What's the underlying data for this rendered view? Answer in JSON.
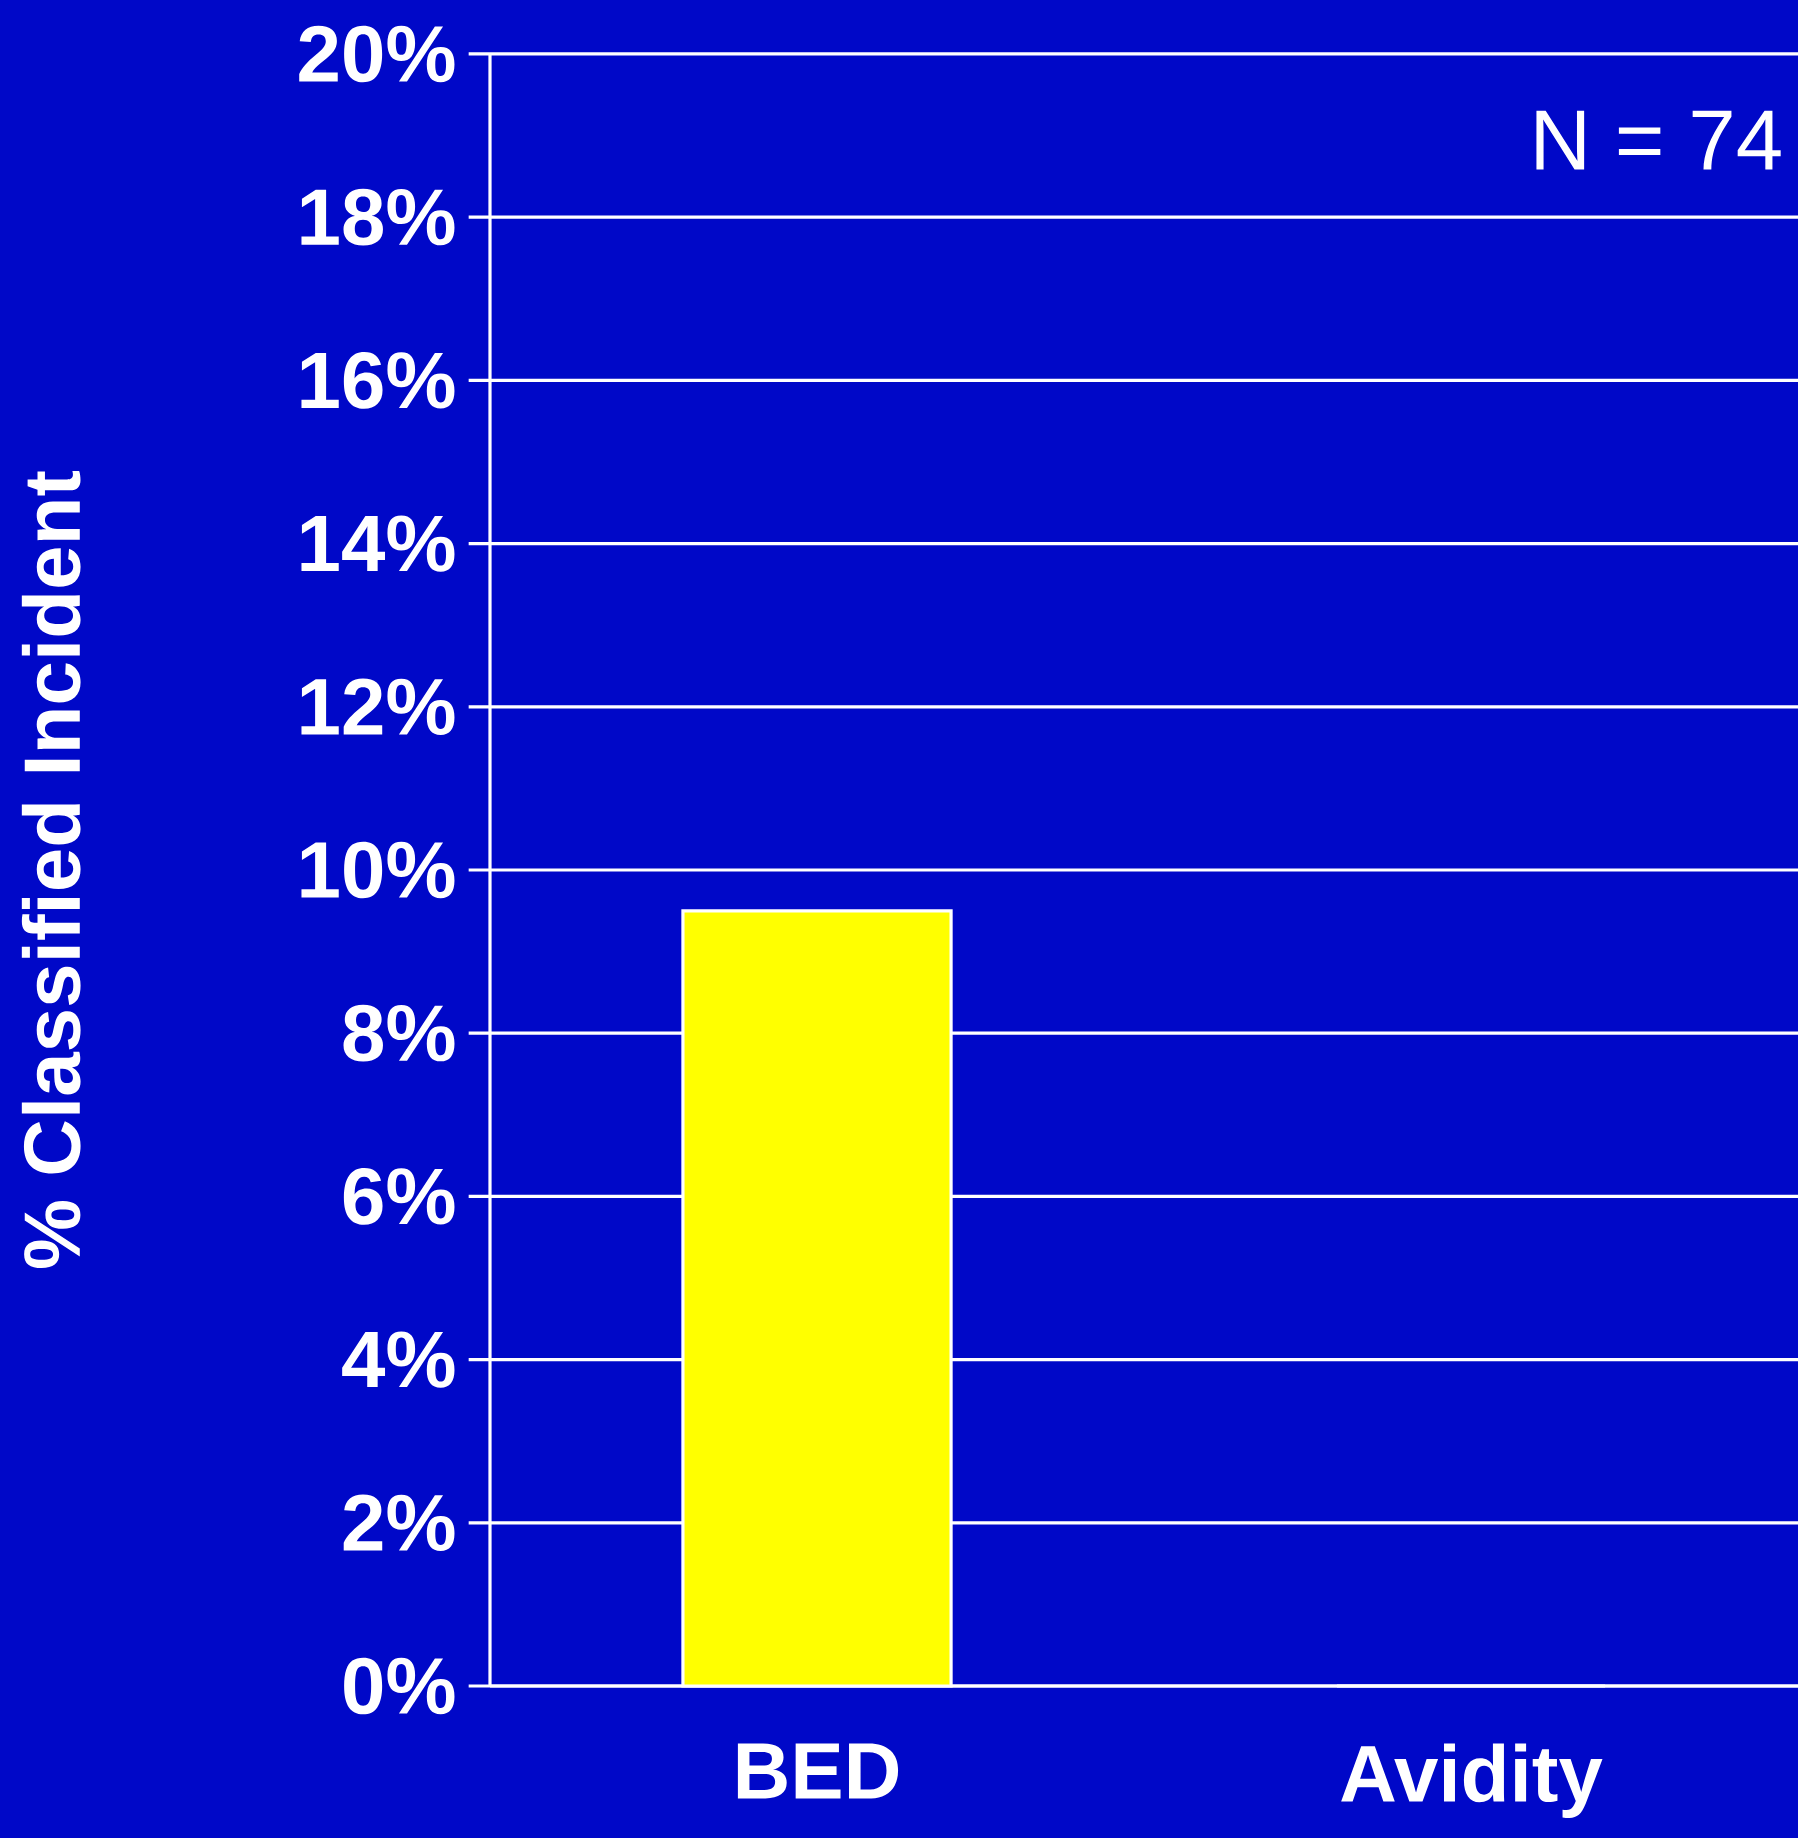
{
  "chart_data": {
    "type": "bar",
    "categories": [
      "BED",
      "Avidity"
    ],
    "values": [
      9.5,
      0
    ],
    "color": "#ffff00",
    "ylabel": "% Classified Incident",
    "ylim": [
      0,
      20
    ],
    "yticks": [
      {
        "value": 0,
        "label": "0%"
      },
      {
        "value": 2,
        "label": "2%"
      },
      {
        "value": 4,
        "label": "4%"
      },
      {
        "value": 6,
        "label": "6%"
      },
      {
        "value": 8,
        "label": "8%"
      },
      {
        "value": 10,
        "label": "10%"
      },
      {
        "value": 12,
        "label": "12%"
      },
      {
        "value": 14,
        "label": "14%"
      },
      {
        "value": 16,
        "label": "16%"
      },
      {
        "value": 18,
        "label": "18%"
      },
      {
        "value": 20,
        "label": "20%"
      }
    ],
    "grid": "y",
    "annotations": [
      "N = 74"
    ]
  }
}
